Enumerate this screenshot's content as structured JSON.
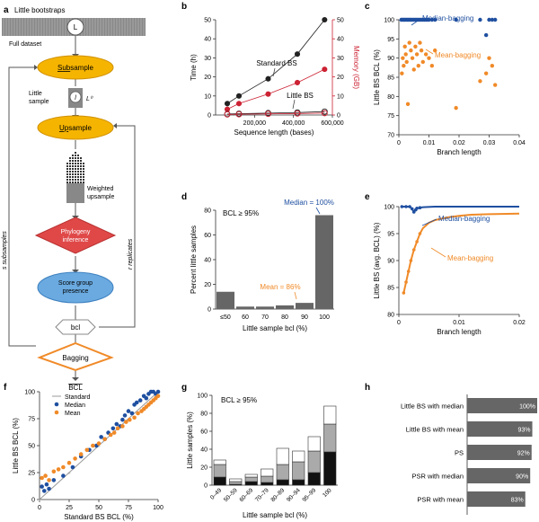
{
  "panel_letters": [
    "a",
    "b",
    "c",
    "d",
    "e",
    "f",
    "g",
    "h"
  ],
  "flowchart": {
    "title": "Little bootstraps",
    "dataset_label": "Full dataset",
    "L_label": "L",
    "l_label": "l",
    "L0_label": "L⁰",
    "little_sample_label": "Little sample",
    "subsample_prefix": "Sub",
    "subsample_suffix": "sample",
    "upsample_prefix": "Up",
    "upsample_suffix": "sample",
    "weighted_upsample_label": "Weighted upsample",
    "phylogeny_label": "Phylogeny inference",
    "score_label": "Score group presence",
    "bcl_label": "bcl",
    "bagging_label": "Bagging",
    "BCL_label": "BCL",
    "s_label": "s subsamples",
    "r_label": "r replicates",
    "colors": {
      "subsample": "#f5b400",
      "upsample": "#f5b400",
      "phylogeny": "#e04848",
      "score": "#6aaae0",
      "bagging": "#f08a28",
      "data": "#888888"
    }
  },
  "chart_data": [
    {
      "panel": "b",
      "type": "line",
      "xlabel": "Sequence length (bases)",
      "ylabel": "Time (h)",
      "y2label": "Memory (GB)",
      "xlim": [
        0,
        600000
      ],
      "ylim": [
        0,
        50
      ],
      "y2lim": [
        0,
        50
      ],
      "xticks": [
        "200,000",
        "400,000",
        "600,000"
      ],
      "yticks": [
        "0",
        "10",
        "20",
        "30",
        "40",
        "50"
      ],
      "annotations": [
        "Standard BS",
        "Little BS"
      ],
      "series": [
        {
          "name": "Standard BS",
          "axis": "time",
          "color": "#222222",
          "x": [
            60000,
            120000,
            270000,
            420000,
            560000
          ],
          "y": [
            6,
            10,
            19,
            32,
            50
          ]
        },
        {
          "name": "Standard BS",
          "axis": "memory",
          "color": "#cc2233",
          "x": [
            60000,
            120000,
            270000,
            420000,
            560000
          ],
          "y": [
            3,
            6,
            11,
            17,
            24
          ]
        },
        {
          "name": "Little BS",
          "axis": "time",
          "color": "#222222",
          "x": [
            60000,
            120000,
            270000,
            420000,
            560000
          ],
          "y": [
            0.5,
            0.7,
            1,
            1.3,
            1.8
          ]
        },
        {
          "name": "Little BS",
          "axis": "memory",
          "color": "#cc2233",
          "x": [
            60000,
            120000,
            270000,
            420000,
            560000
          ],
          "y": [
            0.3,
            0.4,
            0.6,
            0.8,
            1
          ]
        }
      ]
    },
    {
      "panel": "c",
      "type": "scatter",
      "xlabel": "Branch length",
      "ylabel": "Little BS BCL (%)",
      "xlim": [
        0,
        0.04
      ],
      "ylim": [
        70,
        100
      ],
      "xticks": [
        "0",
        "0.01",
        "0.02",
        "0.03",
        "0.04"
      ],
      "yticks": [
        "70",
        "75",
        "80",
        "85",
        "90",
        "95",
        "100"
      ],
      "series": [
        {
          "name": "Median-bagging",
          "color": "#1f4fa0",
          "x": [
            0.0008,
            0.0012,
            0.0016,
            0.002,
            0.0024,
            0.0028,
            0.0032,
            0.0036,
            0.004,
            0.0045,
            0.005,
            0.0055,
            0.006,
            0.0065,
            0.007,
            0.0075,
            0.008,
            0.0085,
            0.009,
            0.0095,
            0.01,
            0.011,
            0.012,
            0.019,
            0.027,
            0.029,
            0.03,
            0.031,
            0.032
          ],
          "y": [
            100,
            100,
            100,
            100,
            100,
            100,
            100,
            100,
            100,
            100,
            100,
            100,
            100,
            100,
            100,
            100,
            100,
            100,
            100,
            100,
            100,
            100,
            100,
            100,
            100,
            96,
            100,
            100,
            100
          ]
        },
        {
          "name": "Mean-bagging",
          "color": "#f08a28",
          "x": [
            0.001,
            0.0013,
            0.0016,
            0.002,
            0.0023,
            0.0026,
            0.003,
            0.0035,
            0.004,
            0.0045,
            0.005,
            0.0055,
            0.006,
            0.0065,
            0.007,
            0.0075,
            0.008,
            0.009,
            0.01,
            0.011,
            0.012,
            0.019,
            0.027,
            0.029,
            0.03,
            0.031,
            0.032
          ],
          "y": [
            86,
            90,
            88,
            93,
            91,
            89,
            78,
            94,
            92,
            90,
            87,
            93,
            91,
            88,
            94,
            92,
            89,
            91,
            90,
            88,
            92,
            77,
            84,
            86,
            90,
            88,
            83
          ]
        }
      ]
    },
    {
      "panel": "d",
      "type": "bar",
      "note": "BCL ≥ 95%",
      "xlabel": "Little sample bcl (%)",
      "ylabel": "Percent little samples",
      "ylim": [
        0,
        80
      ],
      "yticks": [
        "0",
        "20",
        "40",
        "60",
        "80"
      ],
      "categories": [
        "≤50",
        "60",
        "70",
        "80",
        "90",
        "100"
      ],
      "values": [
        14,
        2,
        2,
        3,
        5,
        76
      ],
      "annotations": [
        {
          "text": "Median = 100%",
          "color": "#1f4fa0"
        },
        {
          "text": "Mean = 86%",
          "color": "#f08a28"
        }
      ]
    },
    {
      "panel": "e",
      "type": "line",
      "xlabel": "Branch length",
      "ylabel": "Little BS (avg. BCL) (%)",
      "xlim": [
        0,
        0.02
      ],
      "ylim": [
        80,
        100
      ],
      "xticks": [
        "0",
        "0.01",
        "0.02"
      ],
      "yticks": [
        "80",
        "85",
        "90",
        "95",
        "100"
      ],
      "series": [
        {
          "name": "Median-bagging",
          "color": "#1f4fa0",
          "x": [
            0.0005,
            0.0012,
            0.0018,
            0.0022,
            0.0025,
            0.0028,
            0.003,
            0.0035,
            0.004,
            0.006,
            0.008,
            0.01,
            0.015,
            0.02
          ],
          "y": [
            100,
            100,
            100,
            99.6,
            99,
            99.4,
            99.7,
            99.8,
            99.9,
            100,
            100,
            100,
            100,
            100
          ]
        },
        {
          "name": "Mean-bagging",
          "color": "#f08a28",
          "x": [
            0.0008,
            0.0012,
            0.0016,
            0.002,
            0.0025,
            0.003,
            0.0035,
            0.004,
            0.005,
            0.006,
            0.008,
            0.01,
            0.012,
            0.015,
            0.02
          ],
          "y": [
            84,
            86,
            88,
            90,
            92,
            93.5,
            95,
            96,
            97,
            97.5,
            98,
            98.3,
            98.5,
            98.6,
            98.7
          ]
        }
      ]
    },
    {
      "panel": "f",
      "type": "scatter",
      "xlabel": "Standard BS BCL (%)",
      "ylabel": "Little BS BCL (%)",
      "xlim": [
        0,
        100
      ],
      "ylim": [
        0,
        100
      ],
      "xticks": [
        "0",
        "25",
        "50",
        "75",
        "100"
      ],
      "yticks": [
        "0",
        "25",
        "50",
        "75",
        "100"
      ],
      "series": [
        {
          "name": "Standard",
          "color": "#999999",
          "x": [
            0,
            25,
            50,
            75,
            100
          ],
          "y": [
            0,
            25,
            50,
            75,
            100
          ]
        },
        {
          "name": "Median",
          "color": "#1f4fa0",
          "x": [
            2,
            4,
            6,
            8,
            12,
            20,
            28,
            35,
            42,
            48,
            52,
            55,
            58,
            62,
            65,
            68,
            70,
            72,
            75,
            78,
            80,
            82,
            85,
            88,
            90,
            92,
            94,
            96,
            98,
            100
          ],
          "y": [
            12,
            8,
            14,
            10,
            18,
            22,
            30,
            40,
            46,
            50,
            58,
            56,
            62,
            66,
            70,
            68,
            74,
            78,
            82,
            80,
            88,
            90,
            92,
            96,
            94,
            98,
            100,
            100,
            98,
            100
          ]
        },
        {
          "name": "Mean",
          "color": "#f08a28",
          "x": [
            2,
            5,
            8,
            12,
            16,
            20,
            25,
            30,
            35,
            40,
            45,
            50,
            55,
            60,
            63,
            66,
            70,
            73,
            76,
            80,
            83,
            86,
            88,
            90,
            92,
            94,
            96,
            98,
            100
          ],
          "y": [
            20,
            22,
            18,
            26,
            28,
            30,
            34,
            38,
            42,
            46,
            50,
            52,
            56,
            60,
            62,
            66,
            68,
            72,
            74,
            76,
            80,
            82,
            84,
            86,
            88,
            90,
            92,
            94,
            96
          ]
        }
      ]
    },
    {
      "panel": "g",
      "type": "bar",
      "note": "BCL ≥ 95%",
      "xlabel": "Little sample bcl (%)",
      "ylabel": "Little samples (%)",
      "ylim": [
        0,
        100
      ],
      "yticks": [
        "0",
        "20",
        "40",
        "60",
        "80",
        "100"
      ],
      "categories": [
        "0–49",
        "50–59",
        "60–69",
        "70–79",
        "80–89",
        "90–94",
        "95–99",
        "100"
      ],
      "series": [
        {
          "name": "bottom",
          "color": "#111111",
          "values": [
            9,
            1,
            4,
            3,
            6,
            6,
            14,
            37
          ]
        },
        {
          "name": "middle",
          "color": "#aaaaaa",
          "values": [
            14,
            3,
            5,
            7,
            17,
            20,
            24,
            31
          ]
        },
        {
          "name": "top",
          "color": "#ffffff",
          "values": [
            5,
            3,
            3,
            8,
            18,
            12,
            16,
            20
          ]
        }
      ]
    },
    {
      "panel": "h",
      "type": "bar",
      "orientation": "horizontal",
      "categories": [
        "Little BS with median",
        "Little BS with mean",
        "PS",
        "PSR with median",
        "PSR with mean"
      ],
      "values": [
        100,
        93,
        92,
        90,
        83
      ],
      "value_labels": [
        "100%",
        "93%",
        "92%",
        "90%",
        "83%"
      ],
      "color": "#666666"
    }
  ]
}
